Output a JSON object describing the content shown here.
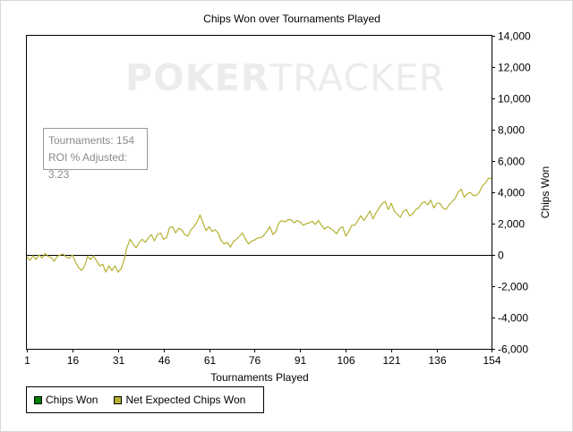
{
  "chart_data": {
    "type": "line",
    "title": "Chips Won over Tournaments Played",
    "xlabel": "Tournaments Played",
    "ylabel": "Chips Won",
    "xlim": [
      1,
      154
    ],
    "ylim": [
      -6000,
      14000
    ],
    "x_ticks": [
      1,
      16,
      31,
      46,
      61,
      76,
      91,
      106,
      121,
      136,
      154
    ],
    "y_ticks": [
      14000,
      12000,
      10000,
      8000,
      6000,
      4000,
      2000,
      0,
      -2000,
      -4000,
      -6000
    ],
    "y_tick_labels": [
      "14,000",
      "12,000",
      "10,000",
      "8,000",
      "6,000",
      "4,000",
      "2,000",
      "0",
      "-2,000",
      "-4,000",
      "-6,000"
    ],
    "x_tick_labels": [
      "1",
      "16",
      "31",
      "46",
      "61",
      "76",
      "91",
      "106",
      "121",
      "136",
      "154"
    ],
    "legend_position": "bottom-left",
    "series": [
      {
        "name": "Chips Won",
        "color": "#008000",
        "x": [],
        "values": []
      },
      {
        "name": "Net Expected Chips Won",
        "color": "#b5b032",
        "x": [
          1,
          2,
          3,
          4,
          5,
          6,
          7,
          8,
          9,
          10,
          11,
          12,
          13,
          14,
          15,
          16,
          17,
          18,
          19,
          20,
          21,
          22,
          23,
          24,
          25,
          26,
          27,
          28,
          29,
          30,
          31,
          32,
          33,
          34,
          35,
          36,
          37,
          38,
          39,
          40,
          41,
          42,
          43,
          44,
          45,
          46,
          47,
          48,
          49,
          50,
          51,
          52,
          53,
          54,
          55,
          56,
          57,
          58,
          59,
          60,
          61,
          62,
          63,
          64,
          65,
          66,
          67,
          68,
          69,
          70,
          71,
          72,
          73,
          74,
          75,
          76,
          77,
          78,
          79,
          80,
          81,
          82,
          83,
          84,
          85,
          86,
          87,
          88,
          89,
          90,
          91,
          92,
          93,
          94,
          95,
          96,
          97,
          98,
          99,
          100,
          101,
          102,
          103,
          104,
          105,
          106,
          107,
          108,
          109,
          110,
          111,
          112,
          113,
          114,
          115,
          116,
          117,
          118,
          119,
          120,
          121,
          122,
          123,
          124,
          125,
          126,
          127,
          128,
          129,
          130,
          131,
          132,
          133,
          134,
          135,
          136,
          137,
          138,
          139,
          140,
          141,
          142,
          143,
          144,
          145,
          146,
          147,
          148,
          149,
          150,
          151,
          152,
          153,
          154
        ],
        "values": [
          -100,
          -350,
          -50,
          -300,
          0,
          -200,
          100,
          -100,
          -150,
          -400,
          -100,
          0,
          50,
          -150,
          -200,
          0,
          -450,
          -800,
          -1000,
          -700,
          -100,
          -300,
          -50,
          -400,
          -700,
          -600,
          -1100,
          -700,
          -1000,
          -700,
          -1100,
          -900,
          -350,
          500,
          1000,
          700,
          450,
          800,
          1000,
          800,
          1100,
          1300,
          900,
          1300,
          1400,
          1000,
          1100,
          1750,
          1800,
          1400,
          1700,
          1600,
          1300,
          1200,
          1600,
          1800,
          2100,
          2550,
          2050,
          1550,
          1800,
          1500,
          1600,
          1400,
          900,
          700,
          800,
          500,
          850,
          1000,
          1200,
          1400,
          1000,
          700,
          900,
          950,
          1100,
          1100,
          1250,
          1500,
          1800,
          1300,
          1500,
          2050,
          2200,
          2100,
          2250,
          2250,
          2050,
          2200,
          2100,
          1900,
          2000,
          2050,
          2150,
          1950,
          2200,
          1900,
          1650,
          1800,
          1700,
          1550,
          1350,
          1700,
          1800,
          1200,
          1500,
          1900,
          1900,
          2200,
          2500,
          2200,
          2500,
          2800,
          2300,
          2700,
          3000,
          3300,
          3400,
          2900,
          3300,
          2800,
          2600,
          2400,
          2800,
          2900,
          2500,
          2600,
          2900,
          3000,
          3300,
          3400,
          3200,
          3500,
          3000,
          3300,
          3300,
          3000,
          2900,
          3200,
          3400,
          3600,
          4000,
          4200,
          3700,
          3900,
          4000,
          3800,
          3800,
          4000,
          4400,
          4600,
          4900,
          4900
        ]
      }
    ]
  },
  "info_box": {
    "tournaments": "Tournaments: 154",
    "roi": "ROI % Adjusted: 3.23"
  },
  "watermark": {
    "text_a": "POKER",
    "text_b": "TRACKER"
  }
}
